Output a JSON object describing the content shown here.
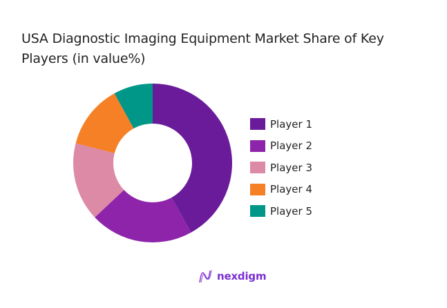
{
  "chart_data": {
    "type": "pie",
    "subtype": "donut",
    "title": "USA Diagnostic Imaging Equipment Market Share of Key Players (in value%)",
    "categories": [
      "Player 1",
      "Player 2",
      "Player 3",
      "Player 4",
      "Player 5"
    ],
    "values": [
      42,
      21,
      16,
      13,
      8
    ],
    "colors": [
      "#6a1b9a",
      "#8e24aa",
      "#dc8aa5",
      "#f58025",
      "#009688"
    ],
    "legend_position": "right",
    "start_angle": "top, clockwise"
  },
  "title_line1": "USA Diagnostic Imaging Equipment Market Share of Key",
  "title_line2": "Players (in value%)",
  "legend": [
    {
      "label": "Player 1",
      "color": "#6a1b9a"
    },
    {
      "label": "Player 2",
      "color": "#8e24aa"
    },
    {
      "label": "Player 3",
      "color": "#dc8aa5"
    },
    {
      "label": "Player 4",
      "color": "#f58025"
    },
    {
      "label": "Player 5",
      "color": "#009688"
    }
  ],
  "logo": {
    "text": "nexdigm"
  }
}
